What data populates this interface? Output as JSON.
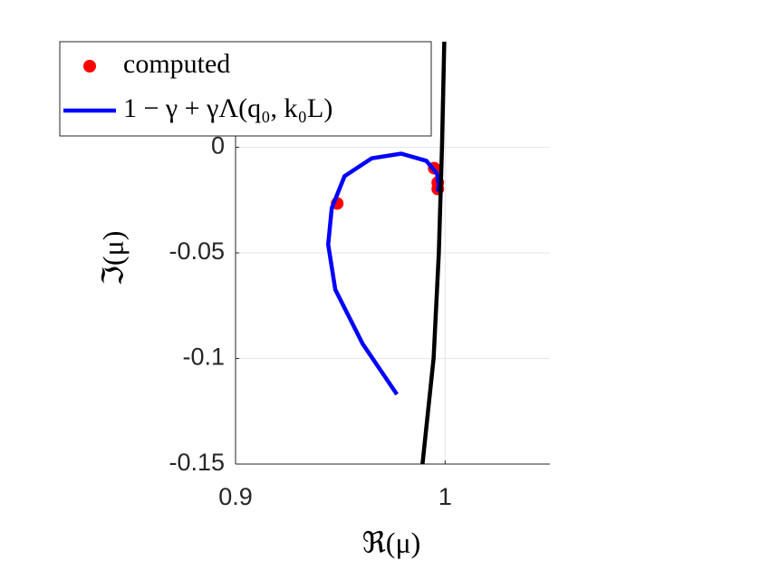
{
  "chart_data": {
    "type": "line",
    "xlabel": "ℜ(μ)",
    "ylabel": "ℑ(μ)",
    "xlim": [
      0.9,
      1.05
    ],
    "ylim": [
      -0.15,
      0.05
    ],
    "xticks": [
      0.9,
      1
    ],
    "yticks": [
      -0.15,
      -0.1,
      -0.05,
      0
    ],
    "grid": true,
    "legend": "upper left",
    "series": [
      {
        "name": "computed",
        "color": "#ff0000",
        "style": "markers",
        "x": [
          0.9485,
          0.9948,
          0.9965,
          0.9965
        ],
        "y": [
          -0.0266,
          -0.0099,
          -0.0167,
          -0.0197
        ]
      },
      {
        "name": "1 − γ + γΛ(q₀, k₀L)",
        "color": "#0000ff",
        "style": "line",
        "x": [
          0.977,
          0.9606,
          0.9476,
          0.9442,
          0.9459,
          0.952,
          0.965,
          0.979,
          0.991,
          0.9961,
          0.997,
          0.9965
        ],
        "y": [
          -0.117,
          -0.093,
          -0.0674,
          -0.046,
          -0.0288,
          -0.0137,
          -0.0052,
          -0.003,
          -0.0064,
          -0.0124,
          -0.018,
          -0.021
        ]
      },
      {
        "color": "#000000",
        "style": "line",
        "x": [
          0.9996,
          0.9985,
          0.997,
          0.9945,
          0.9892
        ],
        "y": [
          0.05,
          0,
          -0.05,
          -0.1,
          -0.15
        ]
      }
    ]
  }
}
